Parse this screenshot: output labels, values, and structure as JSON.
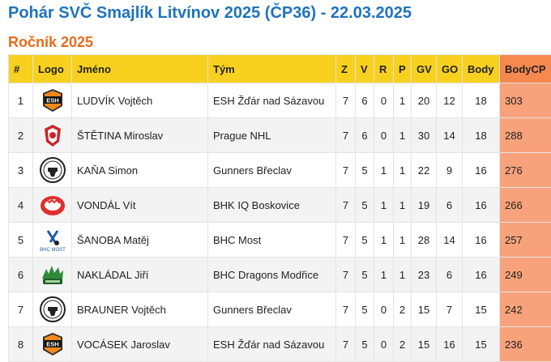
{
  "title": "Pohár SVČ Smajlík Litvínov 2025 (ČP36) - 22.03.2025",
  "subtitle": "Ročník 2025",
  "colors": {
    "title": "#1e73be",
    "subtitle": "#ea6a1c",
    "header": "#f7d11e",
    "highlight": "#f7a27a"
  },
  "columns": [
    "#",
    "Logo",
    "Jméno",
    "Tým",
    "Z",
    "V",
    "R",
    "P",
    "GV",
    "GO",
    "Body",
    "BodyCP"
  ],
  "rows": [
    {
      "rank": "1",
      "logo": "esh-zdar-logo-icon",
      "name": "LUDVÍK Vojtěch",
      "team": "ESH Žďár nad Sázavou",
      "z": "7",
      "v": "6",
      "r": "0",
      "p": "1",
      "gv": "20",
      "go": "12",
      "body": "18",
      "bodycp": "303"
    },
    {
      "rank": "2",
      "logo": "prague-nhl-logo-icon",
      "name": "ŠTĚTINA Miroslav",
      "team": "Prague NHL",
      "z": "7",
      "v": "6",
      "r": "0",
      "p": "1",
      "gv": "30",
      "go": "14",
      "body": "18",
      "bodycp": "288"
    },
    {
      "rank": "3",
      "logo": "gunners-breclav-logo-icon",
      "name": "KAŇA Simon",
      "team": "Gunners Břeclav",
      "z": "7",
      "v": "5",
      "r": "1",
      "p": "1",
      "gv": "22",
      "go": "9",
      "body": "16",
      "bodycp": "276"
    },
    {
      "rank": "4",
      "logo": "bhk-iq-boskovice-logo-icon",
      "name": "VONDÁL Vít",
      "team": "BHK IQ Boskovice",
      "z": "7",
      "v": "5",
      "r": "1",
      "p": "1",
      "gv": "19",
      "go": "6",
      "body": "16",
      "bodycp": "266"
    },
    {
      "rank": "5",
      "logo": "bhc-most-logo-icon",
      "name": "ŠANOBA Matěj",
      "team": "BHC Most",
      "z": "7",
      "v": "5",
      "r": "1",
      "p": "1",
      "gv": "28",
      "go": "14",
      "body": "16",
      "bodycp": "257"
    },
    {
      "rank": "6",
      "logo": "bhc-dragons-logo-icon",
      "name": "NAKLÁDAL Jiří",
      "team": "BHC Dragons Modřice",
      "z": "7",
      "v": "5",
      "r": "1",
      "p": "1",
      "gv": "23",
      "go": "6",
      "body": "16",
      "bodycp": "249"
    },
    {
      "rank": "7",
      "logo": "gunners-breclav-logo-icon",
      "name": "BRAUNER Vojtěch",
      "team": "Gunners Břeclav",
      "z": "7",
      "v": "5",
      "r": "0",
      "p": "2",
      "gv": "15",
      "go": "7",
      "body": "15",
      "bodycp": "242"
    },
    {
      "rank": "8",
      "logo": "esh-zdar-logo-icon",
      "name": "VOCÁSEK Jaroslav",
      "team": "ESH Žďár nad Sázavou",
      "z": "7",
      "v": "5",
      "r": "0",
      "p": "2",
      "gv": "15",
      "go": "16",
      "body": "15",
      "bodycp": "236"
    }
  ]
}
